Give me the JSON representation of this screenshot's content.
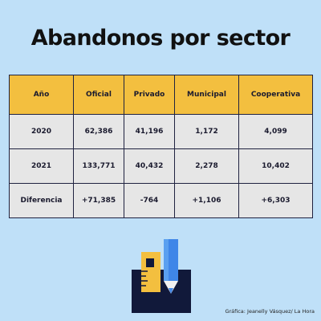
{
  "title": "Abandonos por sector",
  "chart_data": {
    "type": "table",
    "title": "Abandonos por sector",
    "columns": [
      "Año",
      "Oficial",
      "Privado",
      "Municipal",
      "Cooperativa"
    ],
    "rows": [
      [
        "2020",
        "62,386",
        "41,196",
        "1,172",
        "4,099"
      ],
      [
        "2021",
        "133,771",
        "40,432",
        "2,278",
        "10,402"
      ],
      [
        "Diferencia",
        "+71,385",
        "-764",
        "+1,106",
        "+6,303"
      ]
    ]
  },
  "credit": "Gráfica: Jeanelly Vásquez/ La Hora",
  "colors": {
    "background": "#bfe0f8",
    "header_fill": "#f3bf3f",
    "cell_fill": "#e6e6e6",
    "border": "#1f2240"
  },
  "illustration": {
    "icons": [
      "pencil-icon",
      "ruler-icon",
      "pencil-cup-icon"
    ]
  }
}
